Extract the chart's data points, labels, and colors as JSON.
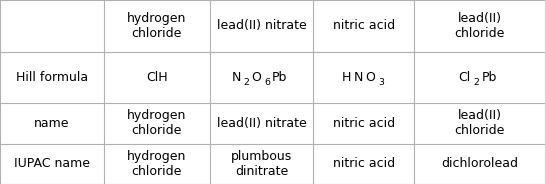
{
  "col_headers": [
    "",
    "hydrogen\nchloride",
    "lead(II) nitrate",
    "nitric acid",
    "lead(II)\nchloride"
  ],
  "rows": [
    {
      "label": "Hill formula",
      "cells": [
        "ClH",
        null,
        null,
        null
      ],
      "formulas": [
        null,
        [
          [
            "N",
            false
          ],
          [
            "2",
            true
          ],
          [
            "O",
            false
          ],
          [
            "6",
            true
          ],
          [
            "Pb",
            false
          ]
        ],
        [
          [
            "H",
            false
          ],
          [
            "N",
            false
          ],
          [
            "O",
            false
          ],
          [
            "3",
            true
          ]
        ],
        [
          [
            "Cl",
            false
          ],
          [
            "2",
            true
          ],
          [
            "Pb",
            false
          ]
        ]
      ]
    },
    {
      "label": "name",
      "cells": [
        "hydrogen\nchloride",
        "lead(II) nitrate",
        "nitric acid",
        "lead(II)\nchloride"
      ],
      "formulas": [
        null,
        null,
        null,
        null
      ]
    },
    {
      "label": "IUPAC name",
      "cells": [
        "hydrogen\nchloride",
        "plumbous\ndinitrate",
        "nitric acid",
        "dichlorolead"
      ],
      "formulas": [
        null,
        null,
        null,
        null
      ]
    }
  ],
  "bg_color": "#ffffff",
  "line_color": "#b0b0b0",
  "text_color": "#000000",
  "font_size": 9,
  "col_bounds": [
    0.0,
    0.19,
    0.385,
    0.575,
    0.76,
    1.0
  ],
  "row_bounds": [
    1.0,
    0.72,
    0.44,
    0.22,
    0.0
  ]
}
